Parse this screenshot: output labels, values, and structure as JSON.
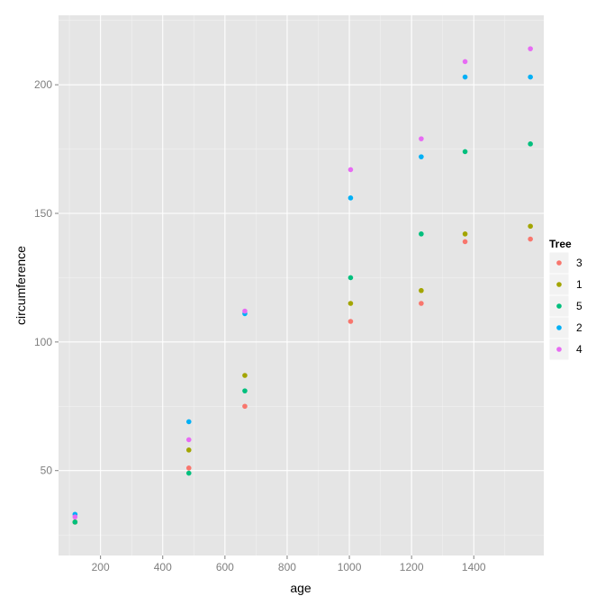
{
  "chart_data": {
    "type": "scatter",
    "xlabel": "age",
    "ylabel": "circumference",
    "xlim": [
      65,
      1625
    ],
    "ylim": [
      17,
      227
    ],
    "x_ticks": [
      200,
      400,
      600,
      800,
      1000,
      1200,
      1400
    ],
    "y_ticks": [
      50,
      100,
      150,
      200
    ],
    "grid": true,
    "legend": {
      "title": "Tree",
      "position": "right"
    },
    "series": [
      {
        "name": "3",
        "color": "#F8766D",
        "points": [
          [
            118,
            30
          ],
          [
            484,
            51
          ],
          [
            664,
            75
          ],
          [
            1004,
            108
          ],
          [
            1231,
            115
          ],
          [
            1372,
            139
          ],
          [
            1582,
            140
          ]
        ]
      },
      {
        "name": "1",
        "color": "#A3A500",
        "points": [
          [
            118,
            30
          ],
          [
            484,
            58
          ],
          [
            664,
            87
          ],
          [
            1004,
            115
          ],
          [
            1231,
            120
          ],
          [
            1372,
            142
          ],
          [
            1582,
            145
          ]
        ]
      },
      {
        "name": "5",
        "color": "#00BF7D",
        "points": [
          [
            118,
            30
          ],
          [
            484,
            49
          ],
          [
            664,
            81
          ],
          [
            1004,
            125
          ],
          [
            1231,
            142
          ],
          [
            1372,
            174
          ],
          [
            1582,
            177
          ]
        ]
      },
      {
        "name": "2",
        "color": "#00B0F6",
        "points": [
          [
            118,
            33
          ],
          [
            484,
            69
          ],
          [
            664,
            111
          ],
          [
            1004,
            156
          ],
          [
            1231,
            172
          ],
          [
            1372,
            203
          ],
          [
            1582,
            203
          ]
        ]
      },
      {
        "name": "4",
        "color": "#E76BF3",
        "points": [
          [
            118,
            32
          ],
          [
            484,
            62
          ],
          [
            664,
            112
          ],
          [
            1004,
            167
          ],
          [
            1231,
            179
          ],
          [
            1372,
            209
          ],
          [
            1582,
            214
          ]
        ]
      }
    ]
  }
}
